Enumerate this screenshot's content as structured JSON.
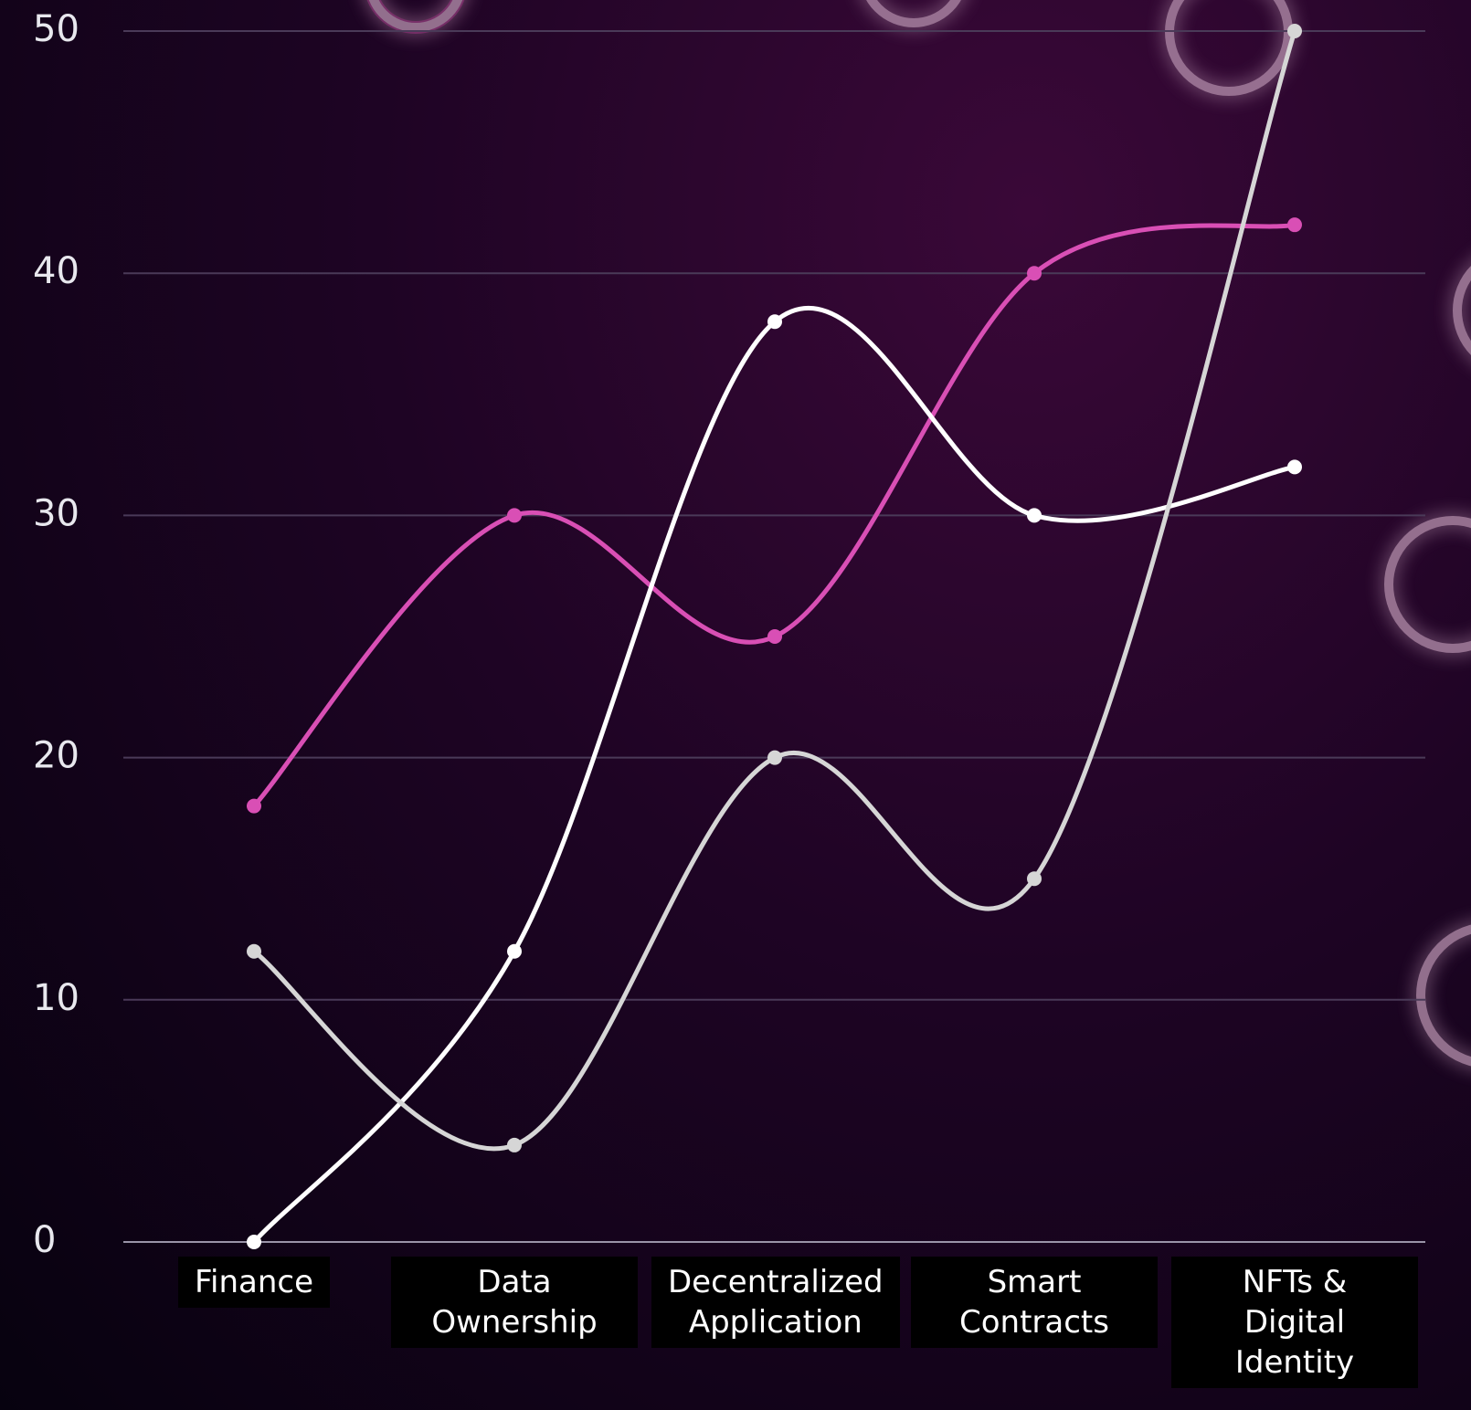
{
  "chart_data": {
    "type": "line",
    "categories": [
      "Finance",
      "Data Ownership",
      "Decentralized Application",
      "Smart Contracts",
      "NFTs & Digital Identity"
    ],
    "series": [
      {
        "color": "#d94fb5",
        "values": [
          18,
          30,
          25,
          40,
          42
        ]
      },
      {
        "color": "#ffffff",
        "values": [
          0,
          12,
          38,
          30,
          32
        ]
      },
      {
        "color": "#d6d6d6",
        "values": [
          12,
          4,
          20,
          15,
          50
        ]
      }
    ],
    "ylim": [
      0,
      50
    ],
    "yticks": [
      0,
      10,
      20,
      30,
      40,
      50
    ],
    "grid": true
  }
}
